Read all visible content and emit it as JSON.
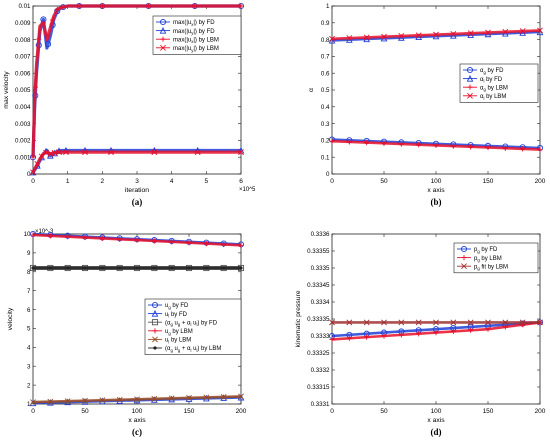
{
  "chart_data": [
    {
      "panel": "(a)",
      "type": "line",
      "xlabel": "iteration",
      "ylabel": "max velocity",
      "x_exponent": "×10^5",
      "xlim": [
        0,
        6
      ],
      "ylim": [
        0,
        0.01
      ],
      "xticks": [
        "0",
        "1",
        "2",
        "3",
        "4",
        "5",
        "6"
      ],
      "yticks": [
        "0",
        "0.001",
        "0.002",
        "0.003",
        "0.004",
        "0.005",
        "0.006",
        "0.007",
        "0.008",
        "0.009",
        "0.01"
      ],
      "legend_position": "top-right",
      "series": [
        {
          "name": "max(|u_x|) by FD",
          "color": "#1f3fd6",
          "marker": "circle",
          "x": [
            0,
            0.05,
            0.1,
            0.2,
            0.3,
            0.4,
            0.5,
            0.6,
            0.7,
            0.8,
            1.0,
            1.5,
            2,
            3,
            4,
            5,
            6
          ],
          "y": [
            0.001,
            0.004,
            0.006,
            0.0085,
            0.0092,
            0.0075,
            0.0082,
            0.0092,
            0.0097,
            0.0099,
            0.01,
            0.01,
            0.01,
            0.01,
            0.01,
            0.01,
            0.01
          ]
        },
        {
          "name": "max(|u_y|) by FD",
          "color": "#1f3fd6",
          "marker": "triangle",
          "x": [
            0,
            0.1,
            0.2,
            0.3,
            0.4,
            0.5,
            0.6,
            0.7,
            0.8,
            1.0,
            1.5,
            2,
            3,
            4,
            5,
            6
          ],
          "y": [
            0.0001,
            0.0004,
            0.0008,
            0.0012,
            0.0014,
            0.0011,
            0.0012,
            0.00135,
            0.0014,
            0.0014,
            0.0014,
            0.0014,
            0.0014,
            0.0014,
            0.0014,
            0.0014
          ]
        },
        {
          "name": "max(|u_x|) by LBM",
          "color": "#e8102a",
          "marker": "plus",
          "x": [
            0,
            0.05,
            0.1,
            0.2,
            0.3,
            0.4,
            0.5,
            0.6,
            0.7,
            0.8,
            1.0,
            1.5,
            2,
            3,
            4,
            5,
            6
          ],
          "y": [
            0.001,
            0.0045,
            0.0065,
            0.0088,
            0.009,
            0.008,
            0.0087,
            0.0094,
            0.0098,
            0.0099,
            0.01,
            0.01,
            0.01,
            0.01,
            0.01,
            0.01,
            0.01
          ]
        },
        {
          "name": "max(|u_y|) by LBM",
          "color": "#e8102a",
          "marker": "cross",
          "x": [
            0,
            0.1,
            0.2,
            0.3,
            0.4,
            0.5,
            0.6,
            0.7,
            0.8,
            1.0,
            1.5,
            2,
            3,
            4,
            5,
            6
          ],
          "y": [
            0.0001,
            0.0005,
            0.0009,
            0.0012,
            0.0013,
            0.0012,
            0.00125,
            0.0013,
            0.0013,
            0.0013,
            0.0013,
            0.0013,
            0.0013,
            0.0013,
            0.0013,
            0.0013
          ]
        }
      ]
    },
    {
      "panel": "(b)",
      "type": "line",
      "xlabel": "x axis",
      "ylabel": "α",
      "xlim": [
        0,
        200
      ],
      "ylim": [
        0,
        1
      ],
      "xticks": [
        "0",
        "50",
        "100",
        "150",
        "200"
      ],
      "yticks": [
        "0",
        "0.1",
        "0.2",
        "0.3",
        "0.4",
        "0.5",
        "0.6",
        "0.7",
        "0.8",
        "0.9",
        "1"
      ],
      "legend_position": "center-right",
      "series": [
        {
          "name": "α_g by FD",
          "color": "#1f3fd6",
          "marker": "circle",
          "x": [
            0,
            200
          ],
          "y": [
            0.205,
            0.155
          ]
        },
        {
          "name": "α_l by FD",
          "color": "#1f3fd6",
          "marker": "triangle",
          "x": [
            0,
            200
          ],
          "y": [
            0.795,
            0.845
          ]
        },
        {
          "name": "α_g by LBM",
          "color": "#e8102a",
          "marker": "plus",
          "x": [
            0,
            200
          ],
          "y": [
            0.195,
            0.145
          ]
        },
        {
          "name": "α_l by LBM",
          "color": "#e8102a",
          "marker": "cross",
          "x": [
            0,
            200
          ],
          "y": [
            0.805,
            0.855
          ]
        }
      ]
    },
    {
      "panel": "(c)",
      "type": "line",
      "xlabel": "x axis",
      "ylabel": "velocity",
      "y_exponent": "×10^-3",
      "xlim": [
        0,
        200
      ],
      "ylim": [
        1,
        10
      ],
      "xticks": [
        "0",
        "50",
        "100",
        "150",
        "200"
      ],
      "yticks": [
        "1",
        "2",
        "3",
        "4",
        "5",
        "6",
        "7",
        "8",
        "9",
        "10"
      ],
      "legend_position": "bottom-right",
      "series": [
        {
          "name": "u_g by FD",
          "color": "#1f3fd6",
          "marker": "circle",
          "x": [
            0,
            200
          ],
          "y": [
            10.0,
            9.45
          ]
        },
        {
          "name": "u_l by FD",
          "color": "#1f3fd6",
          "marker": "triangle",
          "x": [
            0,
            200
          ],
          "y": [
            1.05,
            1.35
          ]
        },
        {
          "name": "(α_g u_g + α_l u_l) by FD",
          "color": "#555555",
          "marker": "square",
          "x": [
            0,
            200
          ],
          "y": [
            8.2,
            8.2
          ]
        },
        {
          "name": "u_g by LBM",
          "color": "#e8102a",
          "marker": "plus",
          "x": [
            0,
            200
          ],
          "y": [
            9.95,
            9.4
          ]
        },
        {
          "name": "u_l by LBM",
          "color": "#9a4a20",
          "marker": "cross",
          "x": [
            0,
            200
          ],
          "y": [
            1.1,
            1.4
          ]
        },
        {
          "name": "(α_g u_g + α_l u_l) by LBM",
          "color": "#222222",
          "marker": "dot",
          "x": [
            0,
            200
          ],
          "y": [
            8.2,
            8.2
          ]
        }
      ]
    },
    {
      "panel": "(d)",
      "type": "line",
      "xlabel": "x axis",
      "ylabel": "kinematic pressure",
      "xlim": [
        0,
        200
      ],
      "ylim": [
        0.3331,
        0.3336
      ],
      "xticks": [
        "0",
        "50",
        "100",
        "150",
        "200"
      ],
      "yticks": [
        "0.3331",
        "0.33315",
        "0.3332",
        "0.33325",
        "0.3333",
        "0.33335",
        "0.3334",
        "0.33345",
        "0.3335",
        "0.33355",
        "0.3336"
      ],
      "legend_position": "top-right",
      "series": [
        {
          "name": "p_g by FD",
          "color": "#1f3fd6",
          "marker": "circle",
          "x": [
            0,
            50,
            100,
            150,
            200
          ],
          "y": [
            0.3333,
            0.33331,
            0.33332,
            0.33333,
            0.33334
          ]
        },
        {
          "name": "p_g by LBM",
          "color": "#e8102a",
          "marker": "plus",
          "x": [
            0,
            50,
            100,
            150,
            200
          ],
          "y": [
            0.33329,
            0.3333,
            0.33331,
            0.33332,
            0.33334
          ]
        },
        {
          "name": "p_g fit by LBM",
          "color": "#a03030",
          "marker": "cross",
          "x": [
            0,
            200
          ],
          "y": [
            0.33334,
            0.33334
          ]
        }
      ]
    }
  ],
  "captions": [
    "(a)",
    "(b)",
    "(c)",
    "(d)"
  ]
}
